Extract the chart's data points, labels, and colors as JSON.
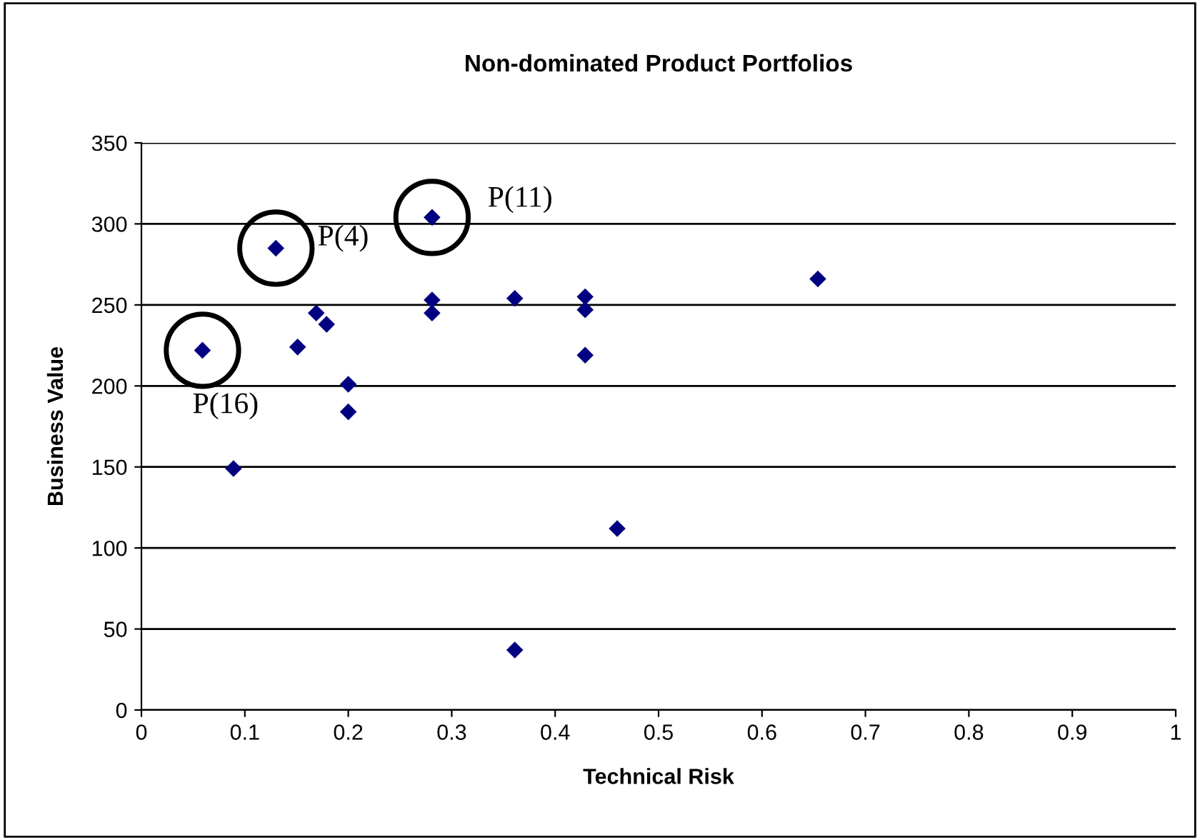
{
  "chart_data": {
    "type": "scatter",
    "title": "Non-dominated Product Portfolios",
    "xlabel": "Technical Risk",
    "ylabel": "Business Value",
    "series": [
      {
        "color": "#000080",
        "x": [
          0.059,
          0.13,
          0.281,
          0.151,
          0.169,
          0.179,
          0.2,
          0.2,
          0.089,
          0.281,
          0.281,
          0.361,
          0.361,
          0.429,
          0.429,
          0.429,
          0.46,
          0.654
        ],
        "values": [
          222,
          285,
          304,
          224,
          245,
          238,
          201,
          184,
          149,
          253,
          245,
          254,
          37,
          255,
          247,
          219,
          112,
          266
        ]
      }
    ],
    "annotations": [
      {
        "text": "P(16)",
        "x": 0.059,
        "y": 222
      },
      {
        "text": "P(4)",
        "x": 0.13,
        "y": 285
      },
      {
        "text": "P(11)",
        "x": 0.281,
        "y": 304
      }
    ],
    "xlim": [
      0,
      1
    ],
    "xticks": [
      0,
      0.1,
      0.2,
      0.3,
      0.4,
      0.5,
      0.6,
      0.7,
      0.8,
      0.9,
      1
    ],
    "ylim": [
      0,
      350
    ],
    "yticks": [
      0,
      50,
      100,
      150,
      200,
      250,
      300,
      350
    ],
    "grid": "y",
    "marker": "diamond",
    "legend": false
  }
}
